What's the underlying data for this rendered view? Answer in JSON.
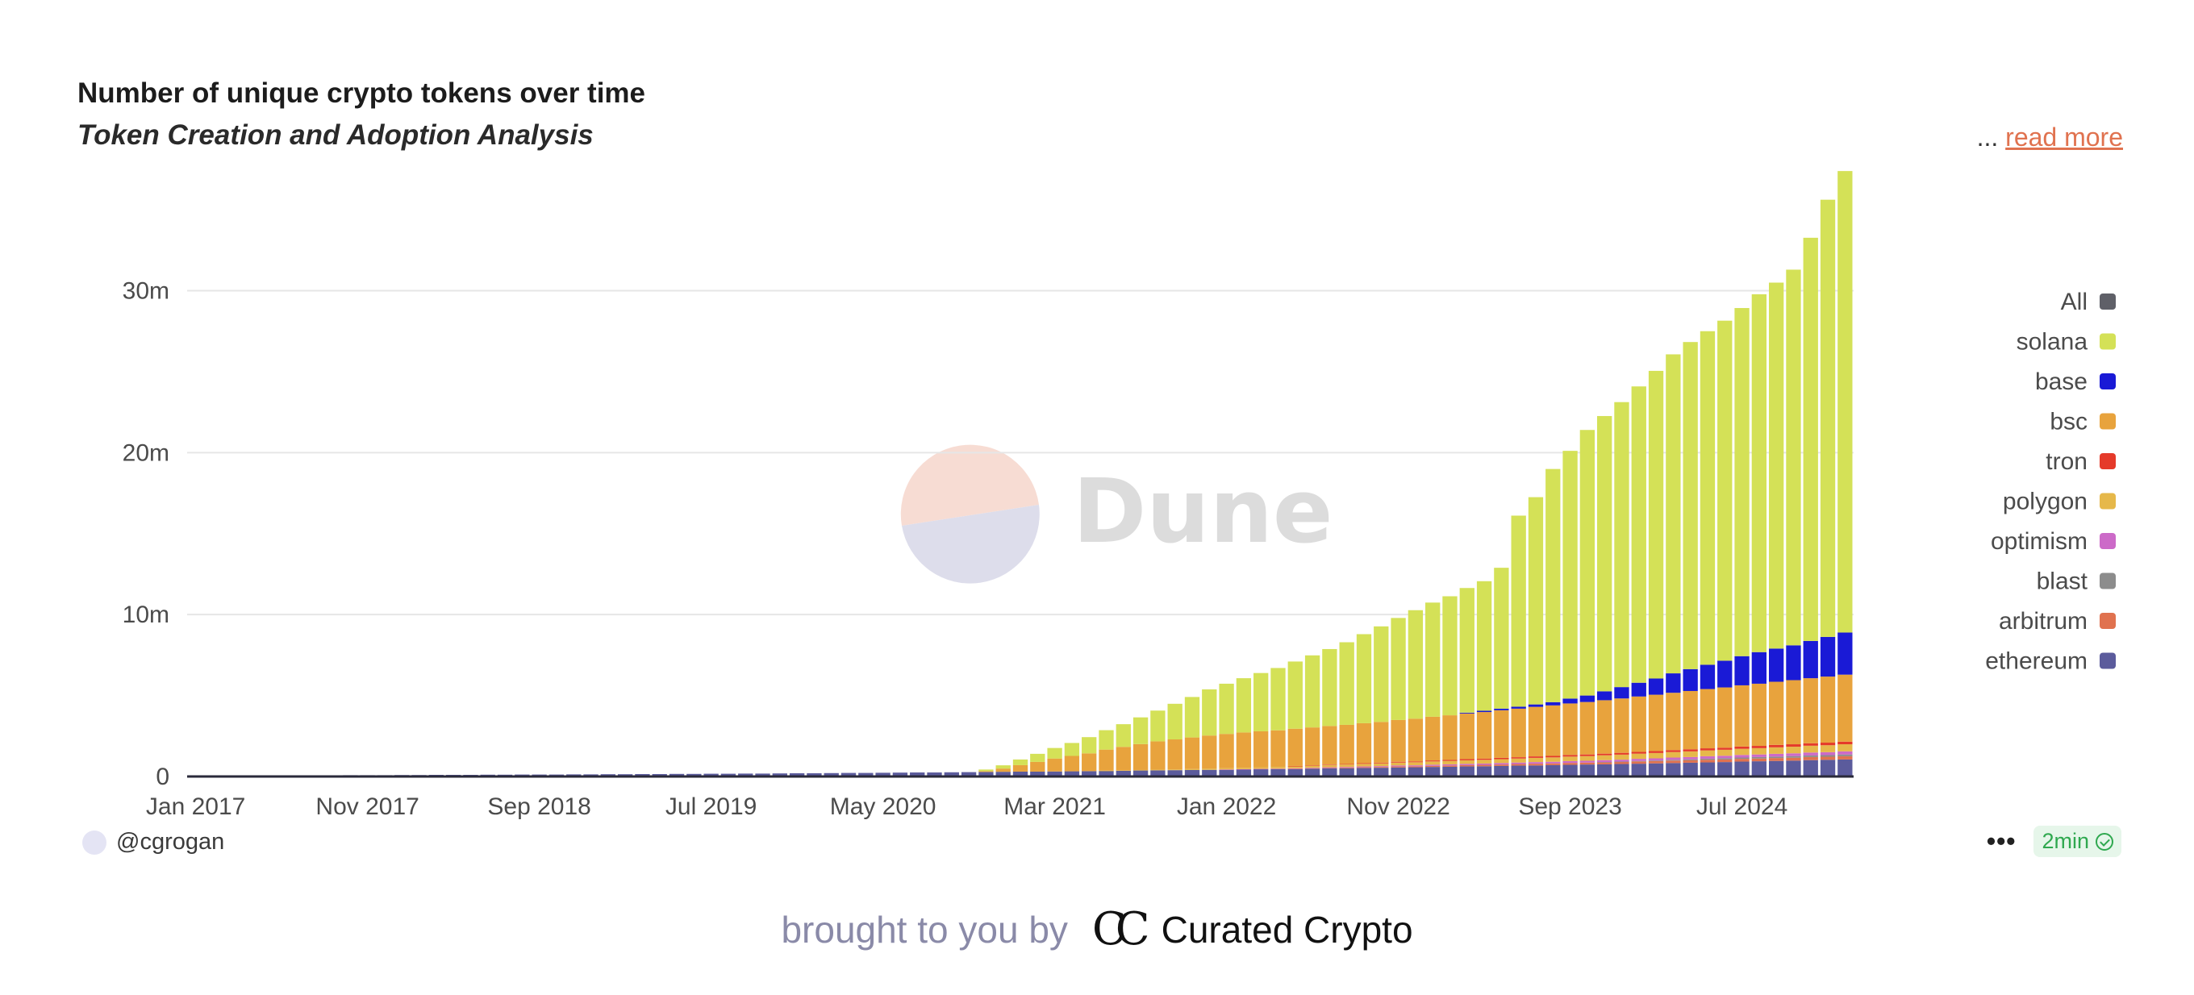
{
  "header": {
    "title": "Number of unique crypto tokens over time",
    "subtitle": "Token Creation and Adoption Analysis",
    "ellipsis": "...",
    "read_more": "read more"
  },
  "watermark": {
    "text": "Dune"
  },
  "footer": {
    "author": "@cgrogan",
    "more": "•••",
    "refresh": "2min"
  },
  "brought_by": {
    "text": "brought to you by",
    "brand": "Curated Crypto",
    "logo_glyph": "CC"
  },
  "chart_data": {
    "type": "bar",
    "stacked": true,
    "title": "Number of unique crypto tokens over time",
    "subtitle": "Token Creation and Adoption Analysis",
    "x_ticks": [
      "Jan 2017",
      "Nov 2017",
      "Sep 2018",
      "Jul 2019",
      "May 2020",
      "Mar 2021",
      "Jan 2022",
      "Nov 2022",
      "Sep 2023",
      "Jul 2024"
    ],
    "y_ticks": [
      {
        "value": 0,
        "label": "0"
      },
      {
        "value": 10,
        "label": "10m"
      },
      {
        "value": 20,
        "label": "20m"
      },
      {
        "value": 30,
        "label": "30m"
      }
    ],
    "ylim": [
      0,
      36.5
    ],
    "y_unit": "millions",
    "grid": true,
    "legend_position": "right",
    "legend": [
      {
        "name": "All",
        "color": "#5f6068"
      },
      {
        "name": "solana",
        "color": "#d4e157"
      },
      {
        "name": "base",
        "color": "#1a1ad6"
      },
      {
        "name": "bsc",
        "color": "#e8a33d"
      },
      {
        "name": "tron",
        "color": "#e53a2a"
      },
      {
        "name": "polygon",
        "color": "#e6b84a"
      },
      {
        "name": "optimism",
        "color": "#cc6ac8"
      },
      {
        "name": "blast",
        "color": "#8c8c8c"
      },
      {
        "name": "arbitrum",
        "color": "#e0724f"
      },
      {
        "name": "ethereum",
        "color": "#5b5b9c"
      }
    ],
    "stack_order": [
      "ethereum",
      "arbitrum",
      "blast",
      "optimism",
      "polygon",
      "tron",
      "bsc",
      "base",
      "solana"
    ],
    "series": [
      {
        "name": "ethereum",
        "values": [
          0.05,
          0.05,
          0.05,
          0.06,
          0.06,
          0.06,
          0.07,
          0.07,
          0.07,
          0.08,
          0.08,
          0.08,
          0.09,
          0.09,
          0.1,
          0.1,
          0.1,
          0.11,
          0.11,
          0.12,
          0.12,
          0.12,
          0.13,
          0.13,
          0.14,
          0.14,
          0.15,
          0.15,
          0.16,
          0.16,
          0.17,
          0.17,
          0.18,
          0.18,
          0.19,
          0.2,
          0.2,
          0.21,
          0.22,
          0.22,
          0.23,
          0.24,
          0.25,
          0.25,
          0.26,
          0.27,
          0.28,
          0.29,
          0.3,
          0.3,
          0.31,
          0.32,
          0.33,
          0.35,
          0.36,
          0.37,
          0.38,
          0.39,
          0.4,
          0.41,
          0.42,
          0.44,
          0.45,
          0.46,
          0.47,
          0.49,
          0.5,
          0.51,
          0.53,
          0.54,
          0.56,
          0.57,
          0.59,
          0.6,
          0.62,
          0.63,
          0.65,
          0.67,
          0.68,
          0.7,
          0.72,
          0.74,
          0.75,
          0.77,
          0.79,
          0.81,
          0.83,
          0.85,
          0.87,
          0.89,
          0.92,
          0.94,
          0.96,
          0.98,
          1.01,
          1.03,
          1.05
        ]
      },
      {
        "name": "arbitrum",
        "values": [
          0,
          0,
          0,
          0,
          0,
          0,
          0,
          0,
          0,
          0,
          0,
          0,
          0,
          0,
          0,
          0,
          0,
          0,
          0,
          0,
          0,
          0,
          0,
          0,
          0,
          0,
          0,
          0,
          0,
          0,
          0,
          0,
          0,
          0,
          0,
          0,
          0,
          0,
          0,
          0,
          0,
          0,
          0,
          0,
          0,
          0,
          0,
          0,
          0,
          0,
          0,
          0,
          0,
          0,
          0,
          0,
          0,
          0,
          0,
          0,
          0,
          0,
          0,
          0,
          0.01,
          0.02,
          0.03,
          0.04,
          0.04,
          0.05,
          0.06,
          0.06,
          0.07,
          0.08,
          0.08,
          0.09,
          0.09,
          0.1,
          0.11,
          0.11,
          0.12,
          0.12,
          0.13,
          0.13,
          0.14,
          0.14,
          0.15,
          0.15,
          0.16,
          0.16,
          0.17,
          0.17,
          0.18,
          0.18,
          0.19,
          0.19,
          0.2
        ]
      },
      {
        "name": "blast",
        "values": [
          0,
          0,
          0,
          0,
          0,
          0,
          0,
          0,
          0,
          0,
          0,
          0,
          0,
          0,
          0,
          0,
          0,
          0,
          0,
          0,
          0,
          0,
          0,
          0,
          0,
          0,
          0,
          0,
          0,
          0,
          0,
          0,
          0,
          0,
          0,
          0,
          0,
          0,
          0,
          0,
          0,
          0,
          0,
          0,
          0,
          0,
          0,
          0,
          0,
          0,
          0,
          0,
          0,
          0,
          0,
          0,
          0,
          0,
          0,
          0,
          0,
          0,
          0,
          0,
          0,
          0,
          0,
          0,
          0,
          0,
          0,
          0,
          0,
          0,
          0,
          0,
          0,
          0,
          0,
          0,
          0,
          0,
          0.01,
          0.02,
          0.03,
          0.04,
          0.05,
          0.06,
          0.07,
          0.08,
          0.08,
          0.09,
          0.09,
          0.1,
          0.1,
          0.1,
          0.11
        ]
      },
      {
        "name": "optimism",
        "values": [
          0,
          0,
          0,
          0,
          0,
          0,
          0,
          0,
          0,
          0,
          0,
          0,
          0,
          0,
          0,
          0,
          0,
          0,
          0,
          0,
          0,
          0,
          0,
          0,
          0,
          0,
          0,
          0,
          0,
          0,
          0,
          0,
          0,
          0,
          0,
          0,
          0,
          0,
          0,
          0,
          0,
          0,
          0,
          0,
          0,
          0,
          0,
          0,
          0,
          0,
          0,
          0,
          0,
          0,
          0,
          0,
          0,
          0,
          0,
          0,
          0.01,
          0.01,
          0.02,
          0.02,
          0.03,
          0.03,
          0.04,
          0.04,
          0.05,
          0.05,
          0.06,
          0.06,
          0.07,
          0.07,
          0.08,
          0.08,
          0.09,
          0.09,
          0.1,
          0.1,
          0.11,
          0.11,
          0.12,
          0.12,
          0.13,
          0.13,
          0.14,
          0.14,
          0.15,
          0.15,
          0.16,
          0.16,
          0.17,
          0.17,
          0.18,
          0.18,
          0.19
        ]
      },
      {
        "name": "polygon",
        "values": [
          0,
          0,
          0,
          0,
          0,
          0,
          0,
          0,
          0,
          0,
          0,
          0,
          0,
          0,
          0,
          0,
          0,
          0,
          0,
          0,
          0,
          0,
          0,
          0,
          0,
          0,
          0,
          0,
          0,
          0,
          0,
          0,
          0,
          0,
          0,
          0,
          0,
          0,
          0,
          0,
          0,
          0,
          0,
          0,
          0,
          0,
          0,
          0,
          0,
          0,
          0,
          0,
          0,
          0.01,
          0.02,
          0.03,
          0.04,
          0.05,
          0.06,
          0.07,
          0.08,
          0.09,
          0.1,
          0.11,
          0.12,
          0.13,
          0.14,
          0.15,
          0.16,
          0.17,
          0.18,
          0.19,
          0.2,
          0.21,
          0.22,
          0.23,
          0.24,
          0.25,
          0.26,
          0.27,
          0.28,
          0.29,
          0.3,
          0.31,
          0.32,
          0.33,
          0.34,
          0.35,
          0.36,
          0.37,
          0.38,
          0.39,
          0.4,
          0.41,
          0.42,
          0.43,
          0.44
        ]
      },
      {
        "name": "tron",
        "values": [
          0,
          0,
          0,
          0,
          0,
          0,
          0,
          0,
          0,
          0,
          0,
          0,
          0,
          0,
          0,
          0,
          0,
          0,
          0,
          0,
          0,
          0,
          0,
          0,
          0,
          0,
          0,
          0,
          0,
          0,
          0,
          0,
          0,
          0,
          0,
          0,
          0,
          0,
          0,
          0,
          0,
          0,
          0,
          0,
          0,
          0,
          0,
          0,
          0,
          0,
          0,
          0,
          0,
          0,
          0,
          0,
          0,
          0,
          0,
          0,
          0,
          0,
          0,
          0,
          0.02,
          0.02,
          0.03,
          0.03,
          0.04,
          0.04,
          0.05,
          0.05,
          0.06,
          0.06,
          0.07,
          0.07,
          0.08,
          0.08,
          0.09,
          0.09,
          0.1,
          0.1,
          0.1,
          0.11,
          0.11,
          0.12,
          0.12,
          0.13,
          0.13,
          0.13,
          0.14,
          0.14,
          0.15,
          0.15,
          0.15,
          0.16,
          0.16
        ]
      },
      {
        "name": "bsc",
        "values": [
          0,
          0,
          0,
          0,
          0,
          0,
          0,
          0,
          0,
          0,
          0,
          0,
          0,
          0,
          0,
          0,
          0,
          0,
          0,
          0,
          0,
          0,
          0,
          0,
          0,
          0,
          0,
          0,
          0,
          0,
          0,
          0,
          0,
          0,
          0,
          0,
          0,
          0,
          0,
          0,
          0,
          0,
          0,
          0,
          0,
          0,
          0.05,
          0.2,
          0.4,
          0.6,
          0.8,
          0.95,
          1.1,
          1.3,
          1.45,
          1.6,
          1.75,
          1.85,
          1.95,
          2.05,
          2.12,
          2.18,
          2.22,
          2.26,
          2.3,
          2.34,
          2.38,
          2.42,
          2.47,
          2.52,
          2.58,
          2.64,
          2.7,
          2.76,
          2.82,
          2.88,
          2.94,
          3.0,
          3.06,
          3.12,
          3.18,
          3.24,
          3.3,
          3.36,
          3.42,
          3.48,
          3.54,
          3.6,
          3.66,
          3.72,
          3.78,
          3.84,
          3.9,
          3.96,
          4.02,
          4.08,
          4.14
        ]
      },
      {
        "name": "base",
        "values": [
          0,
          0,
          0,
          0,
          0,
          0,
          0,
          0,
          0,
          0,
          0,
          0,
          0,
          0,
          0,
          0,
          0,
          0,
          0,
          0,
          0,
          0,
          0,
          0,
          0,
          0,
          0,
          0,
          0,
          0,
          0,
          0,
          0,
          0,
          0,
          0,
          0,
          0,
          0,
          0,
          0,
          0,
          0,
          0,
          0,
          0,
          0,
          0,
          0,
          0,
          0,
          0,
          0,
          0,
          0,
          0,
          0,
          0,
          0,
          0,
          0,
          0,
          0,
          0,
          0,
          0,
          0,
          0,
          0,
          0,
          0,
          0,
          0,
          0,
          0.05,
          0.08,
          0.1,
          0.12,
          0.15,
          0.2,
          0.3,
          0.4,
          0.55,
          0.7,
          0.85,
          1.0,
          1.2,
          1.35,
          1.5,
          1.65,
          1.8,
          1.95,
          2.05,
          2.15,
          2.3,
          2.45,
          2.6
        ]
      },
      {
        "name": "solana",
        "values": [
          0,
          0,
          0,
          0,
          0,
          0,
          0,
          0,
          0,
          0,
          0,
          0,
          0,
          0,
          0,
          0,
          0,
          0,
          0,
          0,
          0,
          0,
          0,
          0,
          0,
          0,
          0,
          0,
          0,
          0,
          0,
          0,
          0,
          0,
          0,
          0,
          0,
          0,
          0,
          0,
          0,
          0,
          0,
          0,
          0,
          0,
          0.1,
          0.2,
          0.35,
          0.5,
          0.65,
          0.8,
          1.0,
          1.2,
          1.4,
          1.65,
          1.9,
          2.2,
          2.5,
          2.85,
          3.1,
          3.35,
          3.6,
          3.85,
          4.15,
          4.45,
          4.75,
          5.1,
          5.5,
          5.9,
          6.3,
          6.7,
          7.05,
          7.35,
          7.7,
          8.0,
          8.7,
          11.8,
          12.8,
          14.4,
          15.3,
          16.4,
          17.0,
          17.6,
          18.3,
          19.0,
          19.7,
          20.2,
          20.6,
          21.0,
          21.5,
          22.1,
          22.6,
          23.2,
          24.9,
          27.0,
          28.5
        ]
      }
    ]
  }
}
